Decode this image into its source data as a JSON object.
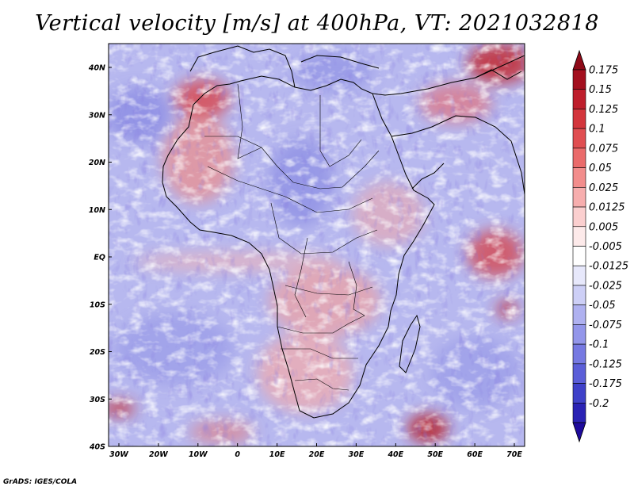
{
  "title": "Vertical velocity [m/s] at 400hPa, VT: 2021032818",
  "credit": "GrADS: IGES/COLA",
  "axes": {
    "lon_labels": [
      "30W",
      "20W",
      "10W",
      "0",
      "10E",
      "20E",
      "30E",
      "40E",
      "50E",
      "60E",
      "70E"
    ],
    "lat_labels": [
      "40N",
      "30N",
      "20N",
      "10N",
      "EQ",
      "10S",
      "20S",
      "30S",
      "40S"
    ]
  },
  "colorbar": {
    "levels": [
      {
        "label": "0.175",
        "color": "#a30f1e"
      },
      {
        "label": "0.15",
        "color": "#be1e2c"
      },
      {
        "label": "0.125",
        "color": "#d3353c"
      },
      {
        "label": "0.1",
        "color": "#e04e51"
      },
      {
        "label": "0.075",
        "color": "#ea6b6b"
      },
      {
        "label": "0.05",
        "color": "#f28d8c"
      },
      {
        "label": "0.025",
        "color": "#f7aeae"
      },
      {
        "label": "0.0125",
        "color": "#fbcfcf"
      },
      {
        "label": "0.005",
        "color": "#fdeaea"
      },
      {
        "label": "-0.005",
        "color": "#ffffff"
      },
      {
        "label": "-0.0125",
        "color": "#e7e8fb"
      },
      {
        "label": "-0.025",
        "color": "#cdcff6"
      },
      {
        "label": "-0.05",
        "color": "#afb1f0"
      },
      {
        "label": "-0.075",
        "color": "#9396ea"
      },
      {
        "label": "-0.1",
        "color": "#7679e2"
      },
      {
        "label": "-0.125",
        "color": "#5b5ed8"
      },
      {
        "label": "-0.175",
        "color": "#3f41c9"
      },
      {
        "label": "-0.2",
        "color": "#2a22b4"
      }
    ],
    "top_color": "#8e0a18",
    "bottom_color": "#1e0a9c"
  }
}
